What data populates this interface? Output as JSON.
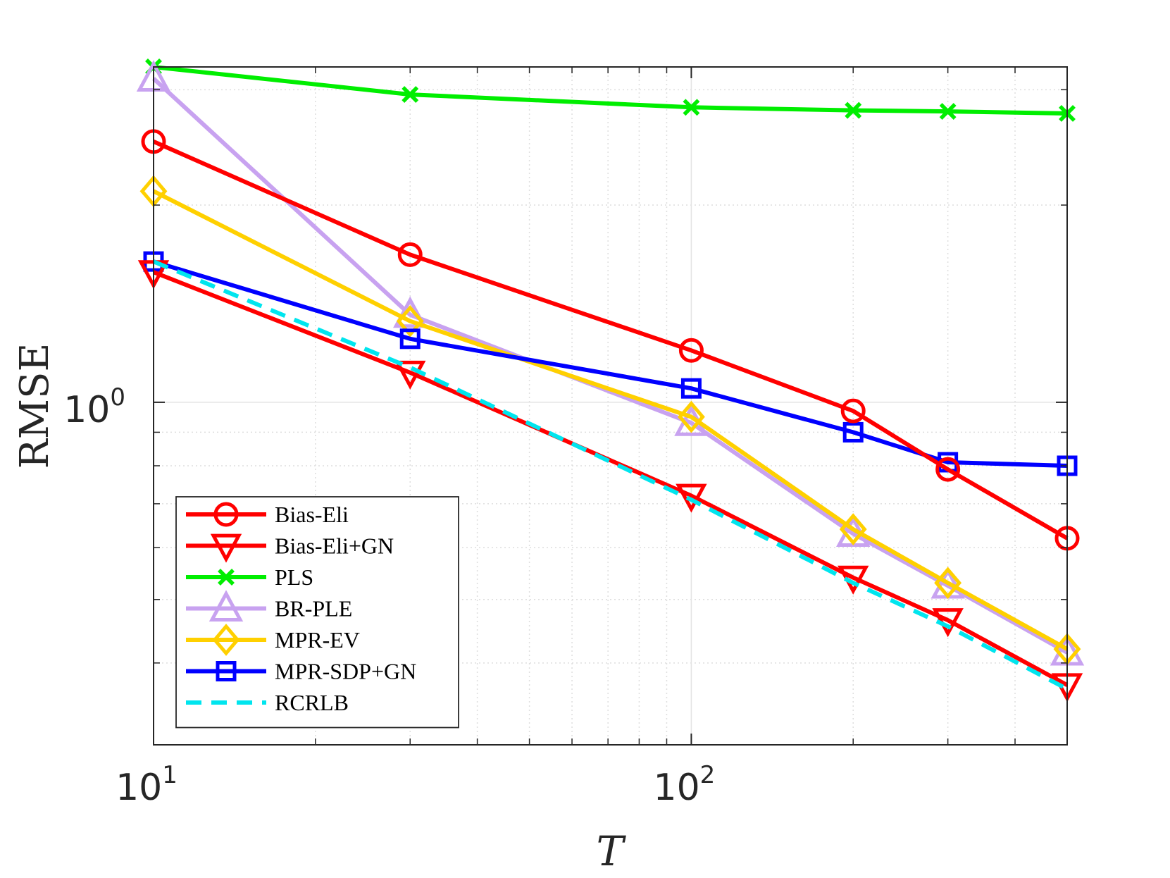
{
  "chart_data": {
    "type": "line",
    "title": "",
    "xlabel": "T",
    "ylabel": "RMSE",
    "xscale": "log",
    "yscale": "log",
    "xlim": [
      10,
      500
    ],
    "ylim": [
      0.3,
      3.25
    ],
    "x_ticks": [
      {
        "value": 10,
        "base": "10",
        "exp": "1"
      },
      {
        "value": 100,
        "base": "10",
        "exp": "2"
      }
    ],
    "y_ticks": [
      {
        "value": 1,
        "base": "10",
        "exp": "0"
      }
    ],
    "grid": true,
    "legend_position": "bottom-left",
    "x": [
      10,
      30,
      100,
      200,
      300,
      500
    ],
    "series": [
      {
        "name": "Bias-Eli",
        "color": "#ff0000",
        "marker": "circle",
        "dash": false,
        "values": [
          2.5,
          1.68,
          1.2,
          0.97,
          0.79,
          0.62
        ]
      },
      {
        "name": "Bias-Eli+GN",
        "color": "#ff0000",
        "marker": "triangle-down",
        "dash": false,
        "values": [
          1.58,
          1.11,
          0.72,
          0.54,
          0.465,
          0.37
        ]
      },
      {
        "name": "PLS",
        "color": "#00ee00",
        "marker": "x",
        "dash": false,
        "values": [
          3.25,
          2.95,
          2.82,
          2.79,
          2.78,
          2.76
        ]
      },
      {
        "name": "BR-PLE",
        "color": "#c8a2f0",
        "marker": "triangle-up",
        "dash": false,
        "values": [
          3.12,
          1.36,
          0.93,
          0.63,
          0.525,
          0.415
        ]
      },
      {
        "name": "MPR-EV",
        "color": "#ffd000",
        "marker": "diamond",
        "dash": false,
        "values": [
          2.1,
          1.33,
          0.95,
          0.64,
          0.53,
          0.42
        ]
      },
      {
        "name": "MPR-SDP+GN",
        "color": "#0000ff",
        "marker": "square",
        "dash": false,
        "values": [
          1.64,
          1.25,
          1.05,
          0.9,
          0.81,
          0.8
        ]
      },
      {
        "name": "RCRLB",
        "color": "#00e5ee",
        "marker": "none",
        "dash": true,
        "values": [
          1.64,
          1.13,
          0.71,
          0.53,
          0.455,
          0.365
        ]
      }
    ]
  }
}
